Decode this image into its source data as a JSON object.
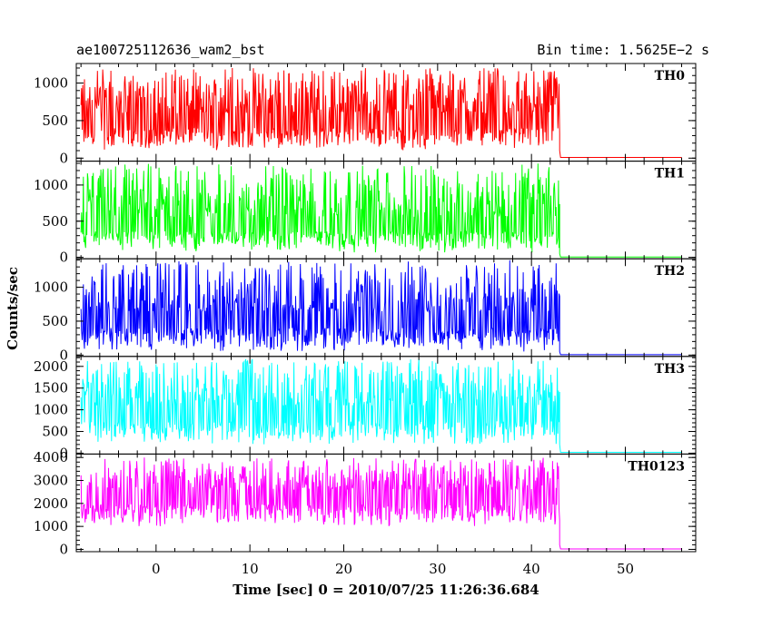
{
  "header": {
    "title": "ae100725112636_wam2_bst",
    "bin_time": "Bin time: 1.5625E−2 s"
  },
  "chart_data": {
    "type": "line",
    "xlabel": "Time [sec] 0 = 2010/07/25 11:26:36.684",
    "ylabel": "Counts/sec",
    "xlim": [
      -8.5,
      57.5
    ],
    "xticks": [
      0,
      10,
      20,
      30,
      40,
      50
    ],
    "grid": false,
    "panels": [
      {
        "name": "TH0",
        "color": "#ff0000",
        "ylim": [
          -40,
          1260
        ],
        "yticks": [
          0,
          500,
          1000
        ],
        "segments": [
          {
            "x_start": -8.0,
            "x_end": 43.0,
            "level": "active",
            "mean": 600,
            "min": 100,
            "max": 1200
          },
          {
            "x_start": 43.0,
            "x_end": 56.0,
            "level": "quiet",
            "mean": 10
          }
        ]
      },
      {
        "name": "TH1",
        "color": "#00ff00",
        "ylim": [
          -20,
          1330
        ],
        "yticks": [
          0,
          500,
          1000
        ],
        "segments": [
          {
            "x_start": -8.0,
            "x_end": 43.0,
            "level": "active",
            "mean": 560,
            "min": 60,
            "max": 1300
          },
          {
            "x_start": 43.0,
            "x_end": 56.0,
            "level": "quiet",
            "mean": 5
          }
        ]
      },
      {
        "name": "TH2",
        "color": "#0000ff",
        "ylim": [
          -20,
          1420
        ],
        "yticks": [
          0,
          500,
          1000
        ],
        "segments": [
          {
            "x_start": -8.0,
            "x_end": 43.0,
            "level": "active",
            "mean": 640,
            "min": 40,
            "max": 1400
          },
          {
            "x_start": 43.0,
            "x_end": 56.0,
            "level": "quiet",
            "mean": 5
          }
        ]
      },
      {
        "name": "TH3",
        "color": "#00ffff",
        "ylim": [
          -20,
          2230
        ],
        "yticks": [
          0,
          500,
          1000,
          1500,
          2000
        ],
        "segments": [
          {
            "x_start": -8.0,
            "x_end": 43.0,
            "level": "active",
            "mean": 1100,
            "min": 180,
            "max": 2180
          },
          {
            "x_start": 43.0,
            "x_end": 56.0,
            "level": "quiet",
            "mean": 20
          }
        ]
      },
      {
        "name": "TH0123",
        "color": "#ff00ff",
        "ylim": [
          -100,
          4150
        ],
        "yticks": [
          0,
          1000,
          2000,
          3000,
          4000
        ],
        "segments": [
          {
            "x_start": -8.0,
            "x_end": 43.0,
            "level": "active",
            "mean": 2600,
            "min": 1000,
            "max": 4000
          },
          {
            "x_start": 43.0,
            "x_end": 56.0,
            "level": "quiet",
            "mean": 20
          }
        ]
      }
    ]
  }
}
